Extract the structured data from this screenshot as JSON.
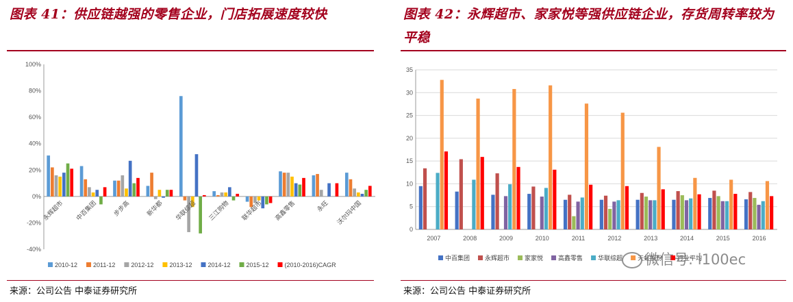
{
  "left": {
    "title": "图表 41：供应链越强的零售企业，门店拓展速度较快",
    "source": "来源：公司公告 中泰证券研究所"
  },
  "right": {
    "title": "图表 42：永辉超市、家家悦等强供应链企业，存货周转率较为平稳",
    "source": "来源：公司公告 中泰证券研究所",
    "watermark": "微信号: i100ec"
  },
  "colors": {
    "accent": "#a3001d",
    "left_series": [
      "#5b9bd5",
      "#ed7d31",
      "#a5a5a5",
      "#ffc000",
      "#4472c4",
      "#70ad47",
      "#ff0000"
    ],
    "right_series": [
      "#4472c4",
      "#c0504d",
      "#9bbb59",
      "#8064a2",
      "#4bacc6",
      "#f79646",
      "#ff0000"
    ]
  },
  "chart_data": [
    {
      "type": "bar",
      "categories": [
        "永辉超市",
        "中百集团",
        "步步高",
        "新华都",
        "华联综超",
        "三江购物",
        "联华超市",
        "高鑫零售",
        "永旺",
        "沃尔玛中国"
      ],
      "series": [
        {
          "name": "2010-12",
          "values": [
            0.31,
            0.23,
            0.12,
            0.08,
            0.76,
            0.04,
            -0.04,
            0.19,
            0.16,
            0.18
          ]
        },
        {
          "name": "2011-12",
          "values": [
            0.22,
            0.13,
            0.12,
            0.18,
            -0.03,
            0.01,
            -0.08,
            0.18,
            0.17,
            0.13
          ]
        },
        {
          "name": "2012-12",
          "values": [
            0.16,
            0.07,
            0.16,
            -0.02,
            -0.27,
            0.03,
            -0.05,
            0.18,
            0.05,
            0.06
          ]
        },
        {
          "name": "2013-12",
          "values": [
            0.15,
            0.03,
            0.06,
            0.05,
            -0.08,
            0.03,
            -0.03,
            0.15,
            0.0,
            0.03
          ]
        },
        {
          "name": "2014-12",
          "values": [
            0.18,
            0.05,
            0.27,
            -0.01,
            0.32,
            0.07,
            -0.09,
            0.1,
            0.1,
            0.02
          ]
        },
        {
          "name": "2015-12",
          "values": [
            0.25,
            -0.06,
            0.1,
            0.05,
            -0.28,
            -0.03,
            -0.06,
            0.09,
            0.0,
            0.05
          ]
        },
        {
          "name": "(2010-2016)CAGR",
          "values": [
            0.21,
            0.07,
            0.14,
            0.05,
            0.01,
            0.02,
            -0.05,
            0.14,
            0.1,
            0.08
          ]
        }
      ],
      "ylim": [
        -0.4,
        1.0
      ],
      "yticks": [
        "-40%",
        "-20%",
        "0%",
        "20%",
        "40%",
        "60%",
        "80%",
        "100%"
      ],
      "legend_position": "bottom"
    },
    {
      "type": "bar",
      "categories": [
        "2007",
        "2008",
        "2009",
        "2010",
        "2011",
        "2012",
        "2013",
        "2014",
        "2015",
        "2016"
      ],
      "series": [
        {
          "name": "中百集团",
          "values": [
            9.5,
            8.3,
            7.6,
            7.8,
            6.5,
            6.5,
            6.5,
            6.5,
            6.9,
            6.6
          ]
        },
        {
          "name": "永辉超市",
          "values": [
            13.4,
            15.4,
            12.3,
            9.4,
            7.6,
            7.4,
            8.0,
            8.4,
            8.5,
            8.2
          ]
        },
        {
          "name": "家家悦",
          "values": [
            0,
            0,
            0,
            0,
            2.9,
            4.5,
            7.2,
            7.5,
            7.3,
            6.9
          ]
        },
        {
          "name": "高鑫零售",
          "values": [
            0,
            0,
            7.3,
            7.2,
            6.1,
            6.1,
            6.4,
            6.4,
            6.2,
            5.4
          ]
        },
        {
          "name": "华联综超",
          "values": [
            12.4,
            10.9,
            9.9,
            9.1,
            7.0,
            6.4,
            6.4,
            6.8,
            6.2,
            6.2
          ]
        },
        {
          "name": "天虹股份",
          "values": [
            32.8,
            28.7,
            30.8,
            31.6,
            27.6,
            25.6,
            18.1,
            11.3,
            10.9,
            10.6
          ]
        },
        {
          "name": "行业平均",
          "values": [
            17.1,
            15.9,
            13.7,
            13.1,
            9.8,
            9.5,
            8.8,
            7.7,
            7.8,
            7.3
          ]
        }
      ],
      "ylim": [
        0,
        35
      ],
      "yticks": [
        "0",
        "5",
        "10",
        "15",
        "20",
        "25",
        "30",
        "35"
      ],
      "legend_position": "bottom"
    }
  ]
}
